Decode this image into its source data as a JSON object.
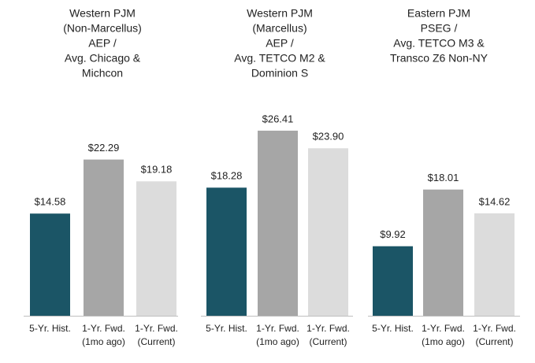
{
  "chart_data": [
    {
      "type": "bar",
      "title": [
        "Western PJM",
        "(Non-Marcellus)",
        "AEP /",
        "Avg. Chicago &",
        "Michcon"
      ],
      "categories": [
        "5-Yr. Hist.",
        "1-Yr. Fwd. (1mo ago)",
        "1-Yr. Fwd. (Current)"
      ],
      "values": [
        14.58,
        22.29,
        19.18
      ],
      "value_labels": [
        "$14.58",
        "$22.29",
        "$19.18"
      ],
      "colors": [
        "#1b5566",
        "#a6a6a6",
        "#dcdcdc"
      ]
    },
    {
      "type": "bar",
      "title": [
        "Western PJM",
        "(Marcellus)",
        "AEP /",
        "Avg. TETCO M2 &",
        "Dominion S"
      ],
      "categories": [
        "5-Yr. Hist.",
        "1-Yr. Fwd. (1mo ago)",
        "1-Yr. Fwd. (Current)"
      ],
      "values": [
        18.28,
        26.41,
        23.9
      ],
      "value_labels": [
        "$18.28",
        "$26.41",
        "$23.90"
      ],
      "colors": [
        "#1b5566",
        "#a6a6a6",
        "#dcdcdc"
      ]
    },
    {
      "type": "bar",
      "title": [
        "Eastern PJM",
        "PSEG /",
        "Avg. TETCO M3 &",
        "Transco Z6 Non-NY"
      ],
      "categories": [
        "5-Yr. Hist.",
        "1-Yr. Fwd. (1mo ago)",
        "1-Yr. Fwd. (Current)"
      ],
      "values": [
        9.92,
        18.01,
        14.62
      ],
      "value_labels": [
        "$9.92",
        "$18.01",
        "$14.62"
      ],
      "colors": [
        "#1b5566",
        "#a6a6a6",
        "#dcdcdc"
      ]
    }
  ]
}
